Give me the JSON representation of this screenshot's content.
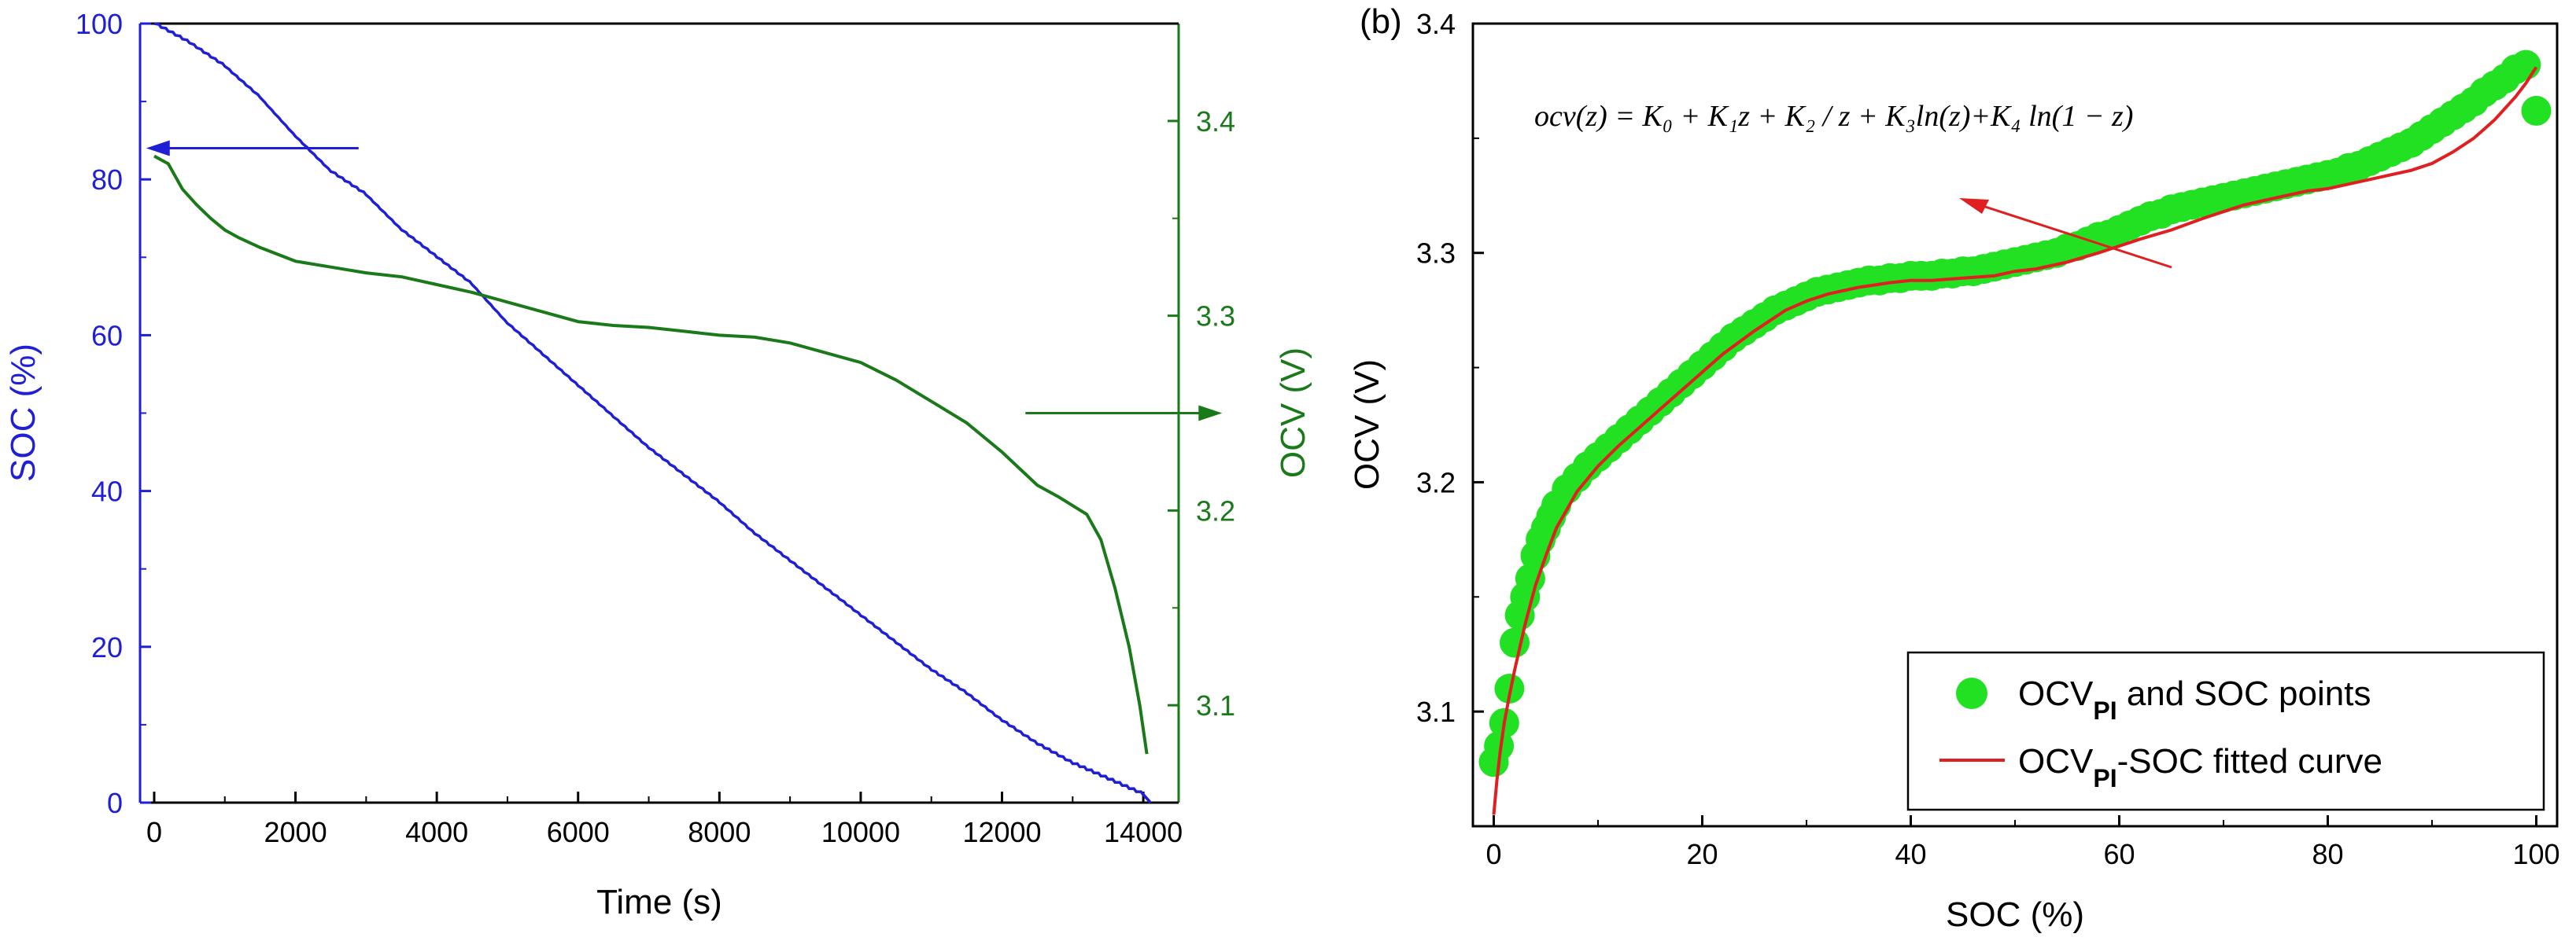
{
  "chart_data": [
    {
      "type": "line",
      "panel": "",
      "xlabel": "Time (s)",
      "ylabel": "SOC (%)",
      "y2label": "OCV (V)",
      "xlim": [
        -200,
        14500
      ],
      "ylim": [
        0,
        100
      ],
      "y2lim": [
        3.05,
        3.45
      ],
      "x_ticks": [
        0,
        2000,
        4000,
        6000,
        8000,
        10000,
        12000,
        14000
      ],
      "y_ticks": [
        0,
        20,
        40,
        60,
        80,
        100
      ],
      "y2_ticks": [
        3.1,
        3.2,
        3.3,
        3.4
      ],
      "colors": {
        "soc": "#1f1fd6",
        "ocv": "#1a7a1a",
        "axes": "#000000"
      },
      "series": [
        {
          "name": "SOC",
          "axis": "left",
          "x": [
            0,
            500,
            1000,
            1500,
            2000,
            2500,
            3000,
            3500,
            4000,
            4500,
            5000,
            5500,
            6000,
            6500,
            7000,
            7500,
            8000,
            8500,
            9000,
            9500,
            10000,
            10500,
            11000,
            11500,
            12000,
            12500,
            13000,
            13500,
            14000,
            14100
          ],
          "values": [
            100,
            97.5,
            94.5,
            90.5,
            85.5,
            81,
            78,
            73.5,
            70,
            66.5,
            61.5,
            57.5,
            53.5,
            49.5,
            45.5,
            42,
            38.5,
            34.5,
            31,
            27.5,
            24,
            20.5,
            17,
            14,
            10.5,
            7.5,
            5,
            3,
            1,
            0
          ]
        },
        {
          "name": "OCV",
          "axis": "right",
          "x": [
            0,
            200,
            400,
            600,
            800,
            1000,
            1200,
            1500,
            2000,
            2500,
            3000,
            3500,
            4000,
            4500,
            5000,
            5500,
            6000,
            6500,
            7000,
            7500,
            8000,
            8500,
            9000,
            9500,
            10000,
            10500,
            11000,
            11500,
            12000,
            12500,
            12800,
            13200,
            13400,
            13600,
            13800,
            13950,
            14050
          ],
          "values": [
            3.382,
            3.378,
            3.365,
            3.357,
            3.35,
            3.344,
            3.34,
            3.335,
            3.328,
            3.325,
            3.322,
            3.32,
            3.316,
            3.312,
            3.307,
            3.302,
            3.297,
            3.295,
            3.294,
            3.292,
            3.29,
            3.289,
            3.286,
            3.281,
            3.276,
            3.267,
            3.256,
            3.245,
            3.23,
            3.213,
            3.207,
            3.198,
            3.185,
            3.16,
            3.13,
            3.1,
            3.075
          ]
        }
      ],
      "annotations": [
        {
          "text": "arrow pointing left to SOC axis",
          "x": 1000,
          "y": 84,
          "direction": "left",
          "color": "#1f1fd6"
        },
        {
          "text": "arrow pointing right to OCV axis",
          "x": 13000,
          "y": 3.25,
          "axis": "right",
          "direction": "right",
          "color": "#1a7a1a"
        }
      ]
    },
    {
      "type": "scatter",
      "panel": "(b)",
      "xlabel": "SOC (%)",
      "ylabel": "OCV (V)",
      "xlim": [
        -2,
        102
      ],
      "ylim": [
        3.05,
        3.4
      ],
      "x_ticks": [
        0,
        20,
        40,
        60,
        80,
        100
      ],
      "y_ticks": [
        3.1,
        3.2,
        3.3,
        3.4
      ],
      "colors": {
        "points": "#22e022",
        "fit": "#e02020",
        "annotation_arrow": "#e02020",
        "axes": "#000000"
      },
      "equation": "ocv(z) = K₀ + K₁z + K₂ / z + K₃ln(z)+K₄ ln(1 − z)",
      "legend": {
        "position": "bottom-right",
        "points_label_main": "OCV",
        "points_label_sub": "PI",
        "points_label_rest": " and SOC points",
        "fit_label_main": "OCV",
        "fit_label_sub": "PI",
        "fit_label_rest": "-SOC fitted curve"
      },
      "series": [
        {
          "name": "OCV_PI and SOC points",
          "kind": "scatter",
          "x": [
            0,
            0.5,
            1,
            1.5,
            2,
            2.5,
            3,
            3.5,
            4,
            4.5,
            5,
            5.5,
            6,
            7,
            8,
            9,
            10,
            11,
            12,
            13,
            14,
            15,
            16,
            17,
            18,
            19,
            20,
            21,
            22,
            23,
            24,
            25,
            26,
            27,
            28,
            29,
            30,
            31,
            32,
            33,
            34,
            35,
            36,
            37,
            38,
            39,
            40,
            41,
            42,
            43,
            44,
            45,
            46,
            47,
            48,
            49,
            50,
            51,
            52,
            53,
            54,
            55,
            56,
            57,
            58,
            59,
            60,
            61,
            62,
            63,
            64,
            65,
            66,
            67,
            68,
            69,
            70,
            71,
            72,
            73,
            74,
            75,
            76,
            77,
            78,
            79,
            80,
            81,
            82,
            83,
            84,
            85,
            86,
            87,
            88,
            89,
            90,
            91,
            92,
            93,
            94,
            95,
            96,
            97,
            98,
            99,
            100
          ],
          "values": [
            3.078,
            3.085,
            3.095,
            3.11,
            3.13,
            3.142,
            3.15,
            3.158,
            3.168,
            3.175,
            3.18,
            3.185,
            3.19,
            3.197,
            3.202,
            3.207,
            3.211,
            3.215,
            3.219,
            3.223,
            3.227,
            3.231,
            3.235,
            3.239,
            3.243,
            3.247,
            3.251,
            3.255,
            3.259,
            3.263,
            3.266,
            3.269,
            3.272,
            3.275,
            3.277,
            3.279,
            3.281,
            3.283,
            3.284,
            3.285,
            3.286,
            3.287,
            3.288,
            3.288,
            3.289,
            3.289,
            3.29,
            3.29,
            3.29,
            3.291,
            3.291,
            3.292,
            3.292,
            3.293,
            3.294,
            3.295,
            3.296,
            3.297,
            3.298,
            3.299,
            3.3,
            3.302,
            3.303,
            3.305,
            3.307,
            3.308,
            3.31,
            3.312,
            3.314,
            3.316,
            3.317,
            3.319,
            3.32,
            3.321,
            3.322,
            3.323,
            3.324,
            3.325,
            3.326,
            3.327,
            3.328,
            3.329,
            3.33,
            3.331,
            3.332,
            3.333,
            3.334,
            3.335,
            3.337,
            3.338,
            3.34,
            3.342,
            3.344,
            3.346,
            3.348,
            3.351,
            3.354,
            3.357,
            3.36,
            3.363,
            3.366,
            3.37,
            3.373,
            3.376,
            3.38,
            3.382,
            3.362
          ]
        },
        {
          "name": "OCV_PI-SOC fitted curve",
          "kind": "line",
          "x": [
            0,
            0.3,
            0.6,
            1,
            1.5,
            2,
            3,
            4,
            5,
            6,
            8,
            10,
            12,
            15,
            18,
            20,
            22,
            25,
            28,
            30,
            32,
            35,
            38,
            40,
            42,
            45,
            48,
            50,
            52,
            55,
            58,
            60,
            62,
            65,
            68,
            70,
            72,
            75,
            78,
            80,
            82,
            85,
            88,
            90,
            92,
            94,
            95,
            96,
            97,
            98,
            99,
            100
          ],
          "values": [
            3.055,
            3.07,
            3.082,
            3.095,
            3.107,
            3.118,
            3.138,
            3.155,
            3.168,
            3.18,
            3.196,
            3.207,
            3.216,
            3.228,
            3.24,
            3.248,
            3.256,
            3.266,
            3.275,
            3.279,
            3.282,
            3.285,
            3.287,
            3.288,
            3.288,
            3.289,
            3.29,
            3.292,
            3.293,
            3.296,
            3.3,
            3.303,
            3.306,
            3.31,
            3.315,
            3.318,
            3.321,
            3.324,
            3.327,
            3.328,
            3.33,
            3.333,
            3.336,
            3.339,
            3.344,
            3.35,
            3.354,
            3.358,
            3.363,
            3.368,
            3.374,
            3.381
          ]
        }
      ]
    }
  ]
}
